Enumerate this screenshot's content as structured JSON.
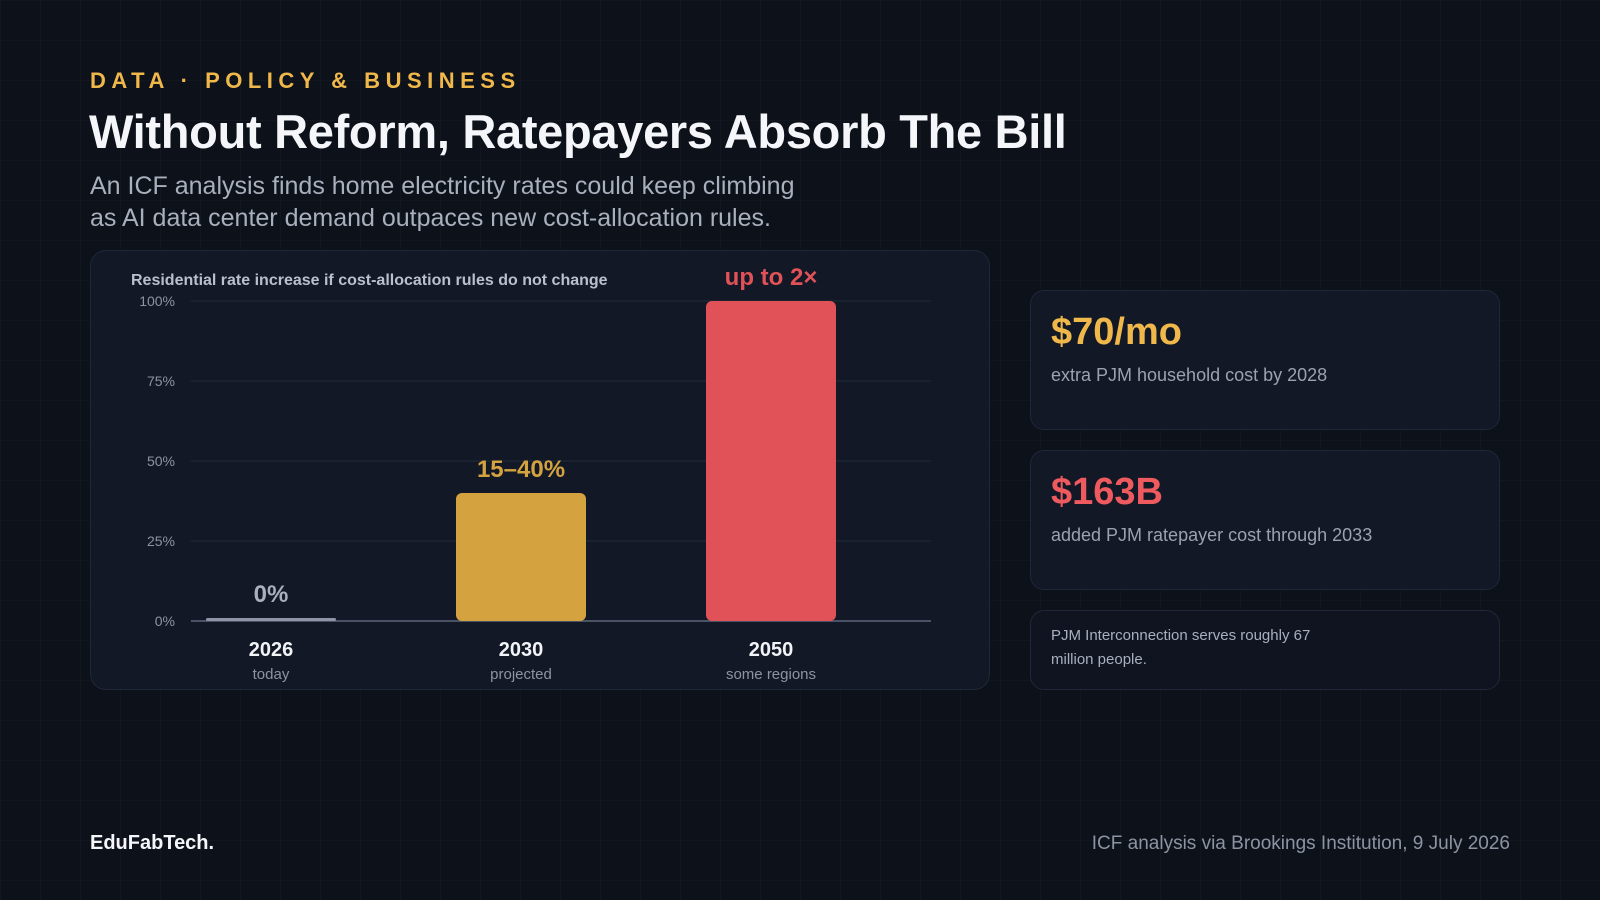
{
  "header": {
    "eyebrow": "DATA · POLICY & BUSINESS",
    "title": "Without Reform, Ratepayers Absorb The Bill",
    "subtitle_line1": "An ICF analysis finds home electricity rates could keep climbing",
    "subtitle_line2": "as AI data center demand outpaces new cost-allocation rules."
  },
  "chart_data": {
    "type": "bar",
    "title": "Residential rate increase if cost-allocation rules do not change",
    "xlabel": "",
    "ylabel": "",
    "ylim": [
      0,
      100
    ],
    "yticks": [
      0,
      25,
      50,
      75,
      100
    ],
    "ytick_labels": [
      "0%",
      "25%",
      "50%",
      "75%",
      "100%"
    ],
    "grid": true,
    "legend": "none",
    "categories": [
      "2026",
      "2030",
      "2050"
    ],
    "sublabels": [
      "today",
      "projected",
      "some regions"
    ],
    "values": [
      0,
      40,
      100
    ],
    "value_labels": [
      "0%",
      "15–40%",
      "up to 2×"
    ],
    "colors": [
      "#8e96a6",
      "#d4a33f",
      "#e05257"
    ]
  },
  "stats": [
    {
      "value": "$70/mo",
      "label": "extra PJM household cost by 2028",
      "color": "#f0b84a"
    },
    {
      "value": "$163B",
      "label": "added PJM ratepayer cost through 2033",
      "color": "#ee5a5e"
    }
  ],
  "note": "PJM Interconnection serves roughly 67 million people.",
  "footer": {
    "brand": "EduFabTech.",
    "source": "ICF analysis via Brookings Institution, 9 July 2026"
  }
}
